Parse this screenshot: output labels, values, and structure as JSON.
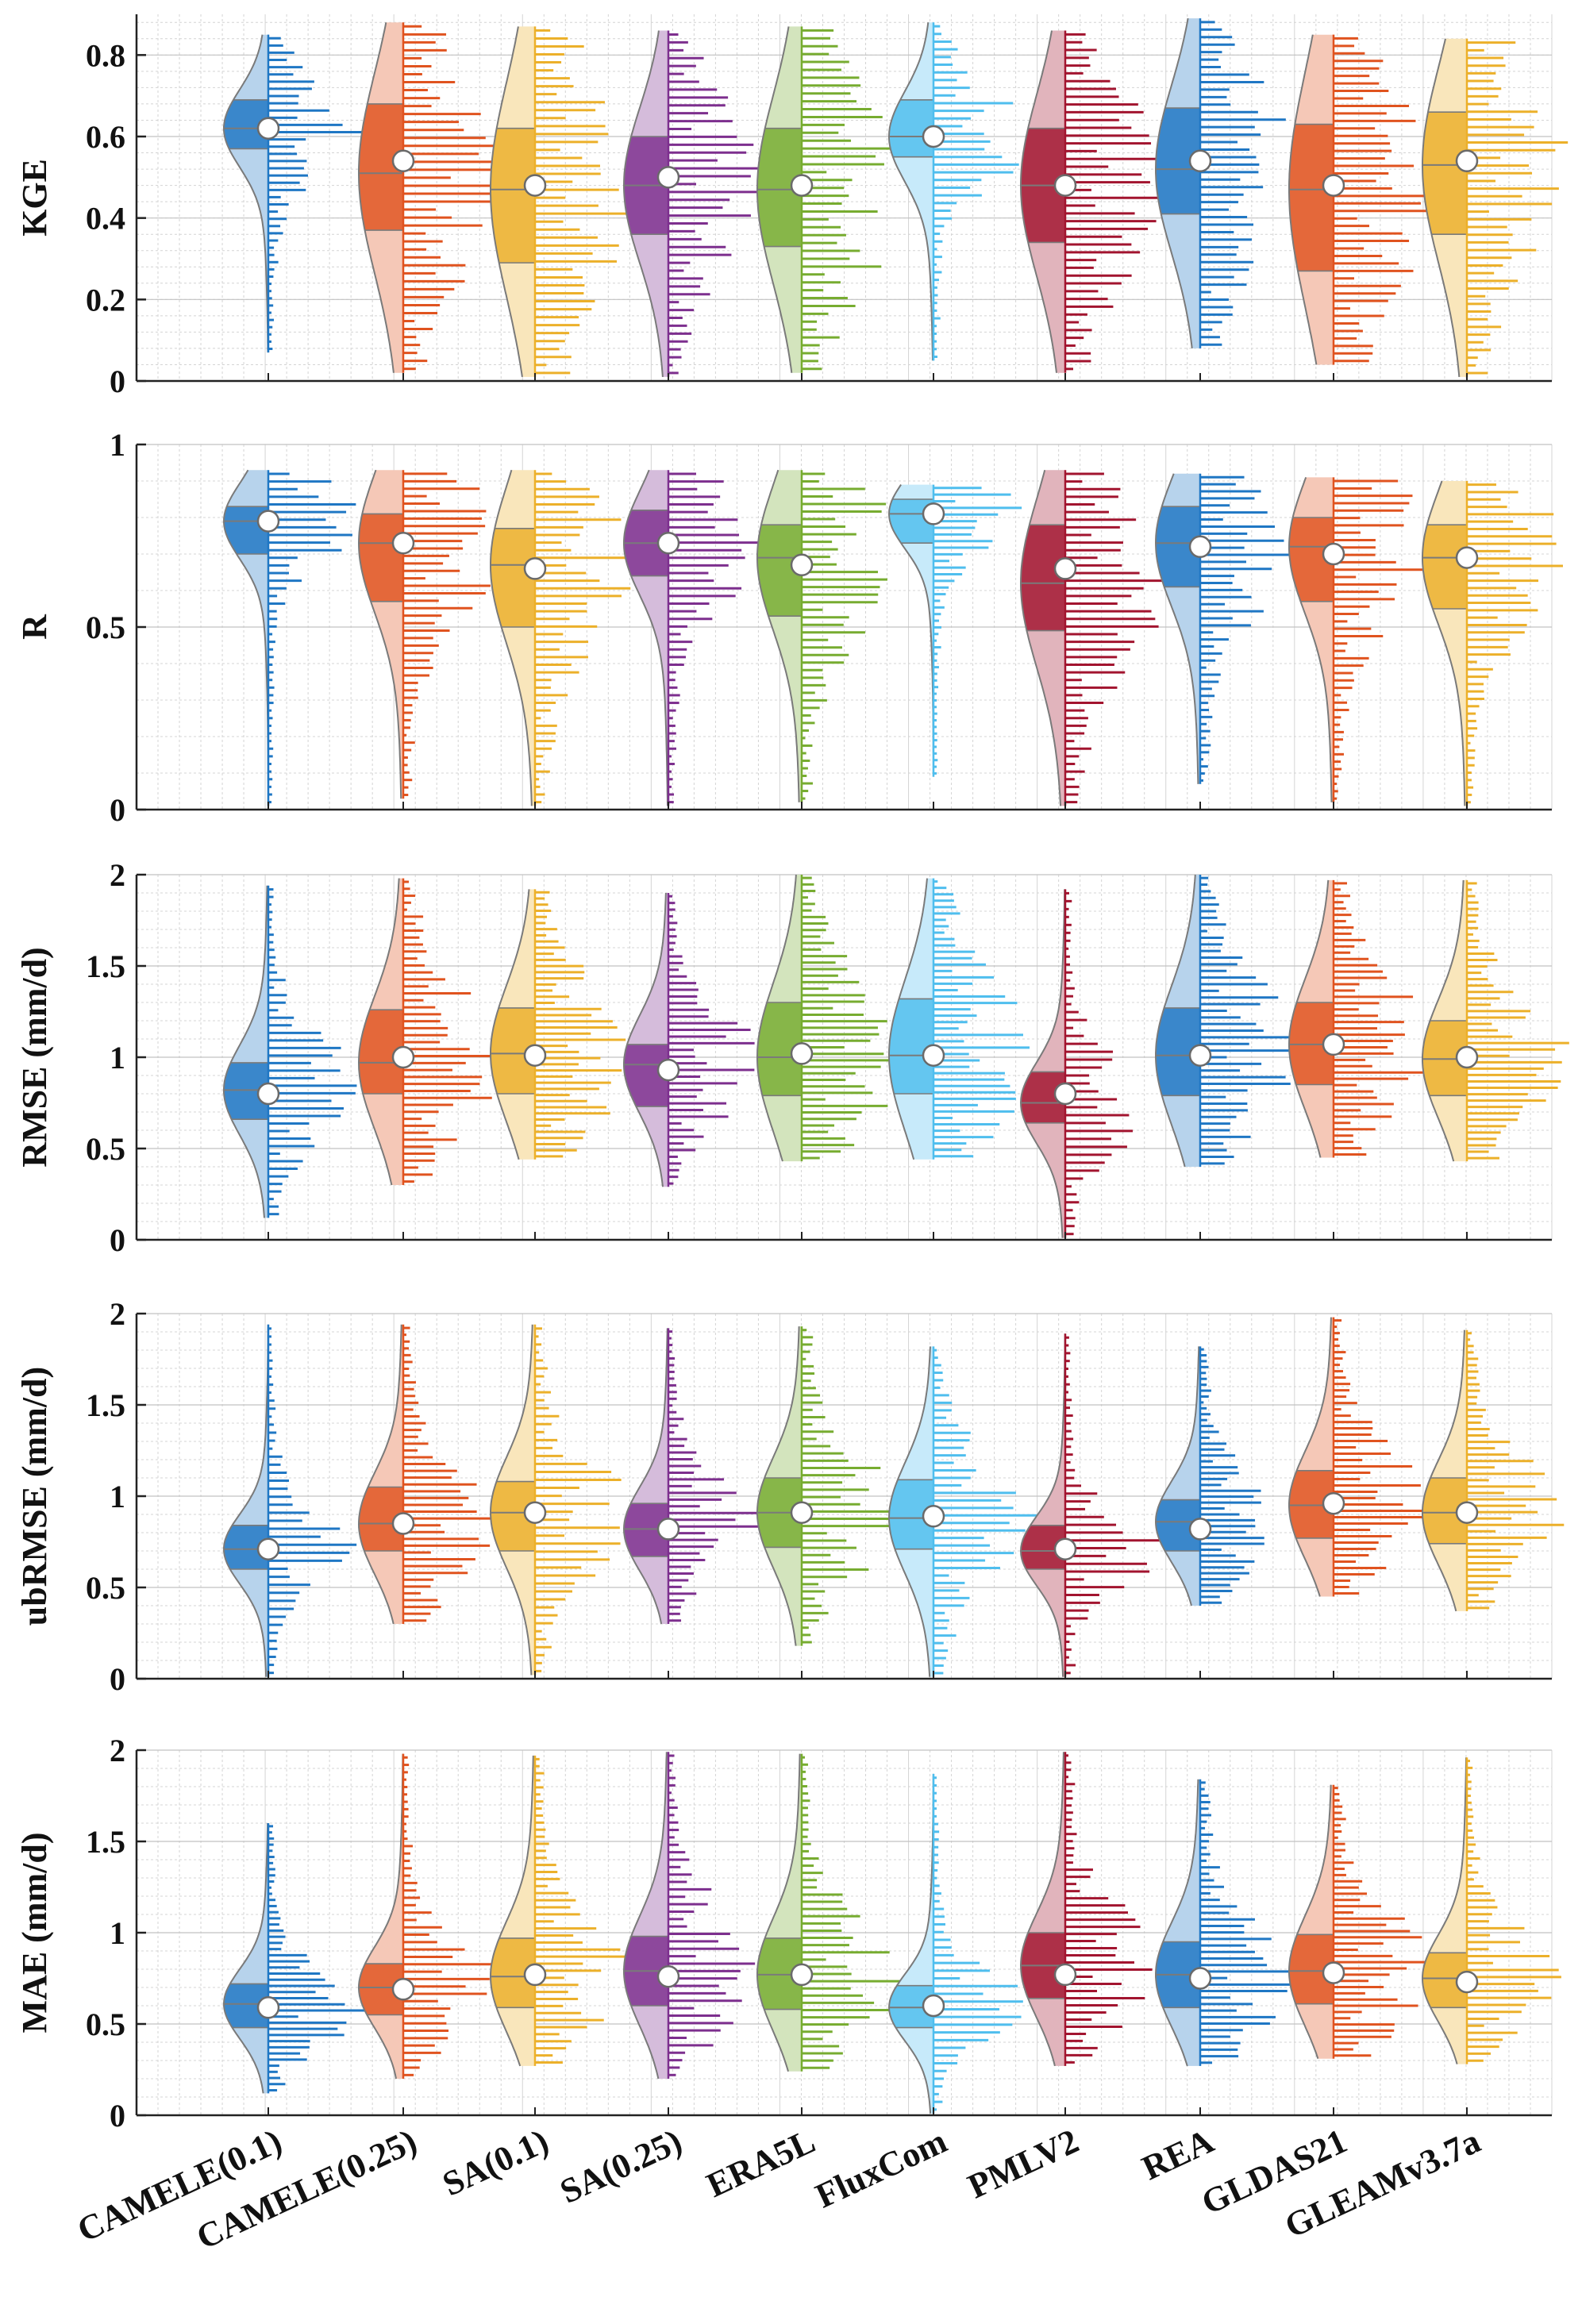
{
  "chart_data": {
    "type": "violin",
    "categories": [
      "CAMELE(0.1)",
      "CAMELE(0.25)",
      "SA(0.1)",
      "SA(0.25)",
      "ERA5L",
      "FluxCom",
      "PMLV2",
      "REA",
      "GLDAS21",
      "GLEAMv3.7a"
    ],
    "colors": [
      "#1f77c4",
      "#e0531f",
      "#ecb02a",
      "#7d2f8e",
      "#77ac30",
      "#4fbeee",
      "#a2142f",
      "#1f77c4",
      "#e0531f",
      "#ecb02a"
    ],
    "grid": true,
    "panels": [
      {
        "ylabel": "KGE",
        "ylim": [
          0,
          0.9
        ],
        "yticks": [
          0,
          0.2,
          0.4,
          0.6,
          0.8
        ],
        "ytick_labels": [
          "0",
          "0.2",
          "0.4",
          "0.6",
          "0.8"
        ],
        "stats": [
          {
            "min": 0.07,
            "q1": 0.57,
            "median": 0.62,
            "q3": 0.69,
            "max": 0.85,
            "mean": 0.62
          },
          {
            "min": 0.02,
            "q1": 0.37,
            "median": 0.51,
            "q3": 0.68,
            "max": 0.88,
            "mean": 0.54
          },
          {
            "min": 0.01,
            "q1": 0.29,
            "median": 0.47,
            "q3": 0.62,
            "max": 0.87,
            "mean": 0.48
          },
          {
            "min": 0.01,
            "q1": 0.36,
            "median": 0.48,
            "q3": 0.6,
            "max": 0.86,
            "mean": 0.5
          },
          {
            "min": 0.02,
            "q1": 0.33,
            "median": 0.47,
            "q3": 0.62,
            "max": 0.87,
            "mean": 0.48
          },
          {
            "min": 0.05,
            "q1": 0.55,
            "median": 0.6,
            "q3": 0.69,
            "max": 0.88,
            "mean": 0.6
          },
          {
            "min": 0.02,
            "q1": 0.34,
            "median": 0.48,
            "q3": 0.62,
            "max": 0.86,
            "mean": 0.48
          },
          {
            "min": 0.08,
            "q1": 0.41,
            "median": 0.52,
            "q3": 0.67,
            "max": 0.89,
            "mean": 0.54
          },
          {
            "min": 0.04,
            "q1": 0.27,
            "median": 0.47,
            "q3": 0.63,
            "max": 0.85,
            "mean": 0.48
          },
          {
            "min": 0.01,
            "q1": 0.36,
            "median": 0.53,
            "q3": 0.66,
            "max": 0.84,
            "mean": 0.54
          }
        ]
      },
      {
        "ylabel": "R",
        "ylim": [
          0,
          1
        ],
        "yticks": [
          0,
          0.5,
          1
        ],
        "ytick_labels": [
          "0",
          "0.5",
          "1"
        ],
        "stats": [
          {
            "min": 0.01,
            "q1": 0.7,
            "median": 0.79,
            "q3": 0.83,
            "max": 0.93,
            "mean": 0.79
          },
          {
            "min": 0.03,
            "q1": 0.57,
            "median": 0.73,
            "q3": 0.81,
            "max": 0.93,
            "mean": 0.73
          },
          {
            "min": 0.01,
            "q1": 0.5,
            "median": 0.67,
            "q3": 0.77,
            "max": 0.93,
            "mean": 0.66
          },
          {
            "min": 0.01,
            "q1": 0.64,
            "median": 0.73,
            "q3": 0.82,
            "max": 0.93,
            "mean": 0.73
          },
          {
            "min": 0.02,
            "q1": 0.53,
            "median": 0.69,
            "q3": 0.78,
            "max": 0.93,
            "mean": 0.67
          },
          {
            "min": 0.09,
            "q1": 0.73,
            "median": 0.81,
            "q3": 0.85,
            "max": 0.89,
            "mean": 0.81
          },
          {
            "min": 0.01,
            "q1": 0.49,
            "median": 0.62,
            "q3": 0.78,
            "max": 0.93,
            "mean": 0.66
          },
          {
            "min": 0.07,
            "q1": 0.61,
            "median": 0.73,
            "q3": 0.83,
            "max": 0.92,
            "mean": 0.72
          },
          {
            "min": 0.02,
            "q1": 0.57,
            "median": 0.72,
            "q3": 0.8,
            "max": 0.91,
            "mean": 0.7
          },
          {
            "min": 0.01,
            "q1": 0.55,
            "median": 0.69,
            "q3": 0.78,
            "max": 0.9,
            "mean": 0.69
          }
        ]
      },
      {
        "ylabel": "RMSE (mm/d)",
        "ylim": [
          0,
          2
        ],
        "yticks": [
          0,
          0.5,
          1,
          1.5,
          2
        ],
        "ytick_labels": [
          "0",
          "0.5",
          "1",
          "1.5",
          "2"
        ],
        "stats": [
          {
            "min": 0.12,
            "q1": 0.66,
            "median": 0.82,
            "q3": 0.97,
            "max": 1.94,
            "mean": 0.8
          },
          {
            "min": 0.3,
            "q1": 0.8,
            "median": 0.97,
            "q3": 1.26,
            "max": 1.98,
            "mean": 1.0
          },
          {
            "min": 0.44,
            "q1": 0.8,
            "median": 1.02,
            "q3": 1.27,
            "max": 1.92,
            "mean": 1.01
          },
          {
            "min": 0.29,
            "q1": 0.73,
            "median": 0.96,
            "q3": 1.07,
            "max": 1.9,
            "mean": 0.93
          },
          {
            "min": 0.43,
            "q1": 0.79,
            "median": 1.0,
            "q3": 1.3,
            "max": 2.0,
            "mean": 1.02
          },
          {
            "min": 0.44,
            "q1": 0.8,
            "median": 1.01,
            "q3": 1.32,
            "max": 1.98,
            "mean": 1.01
          },
          {
            "min": 0.01,
            "q1": 0.64,
            "median": 0.75,
            "q3": 0.92,
            "max": 1.92,
            "mean": 0.8
          },
          {
            "min": 0.4,
            "q1": 0.79,
            "median": 1.01,
            "q3": 1.27,
            "max": 2.0,
            "mean": 1.01
          },
          {
            "min": 0.45,
            "q1": 0.85,
            "median": 1.07,
            "q3": 1.3,
            "max": 1.97,
            "mean": 1.07
          },
          {
            "min": 0.43,
            "q1": 0.79,
            "median": 0.99,
            "q3": 1.2,
            "max": 1.97,
            "mean": 1.0
          }
        ]
      },
      {
        "ylabel": "ubRMSE (mm/d)",
        "ylim": [
          0,
          2
        ],
        "yticks": [
          0,
          0.5,
          1,
          1.5,
          2
        ],
        "ytick_labels": [
          "0",
          "0.5",
          "1",
          "1.5",
          "2"
        ],
        "stats": [
          {
            "min": 0.01,
            "q1": 0.6,
            "median": 0.71,
            "q3": 0.84,
            "max": 1.94,
            "mean": 0.71
          },
          {
            "min": 0.3,
            "q1": 0.7,
            "median": 0.85,
            "q3": 1.05,
            "max": 1.94,
            "mean": 0.85
          },
          {
            "min": 0.02,
            "q1": 0.7,
            "median": 0.91,
            "q3": 1.08,
            "max": 1.94,
            "mean": 0.91
          },
          {
            "min": 0.3,
            "q1": 0.67,
            "median": 0.82,
            "q3": 0.96,
            "max": 1.92,
            "mean": 0.82
          },
          {
            "min": 0.18,
            "q1": 0.72,
            "median": 0.91,
            "q3": 1.1,
            "max": 1.93,
            "mean": 0.91
          },
          {
            "min": 0.01,
            "q1": 0.71,
            "median": 0.88,
            "q3": 1.09,
            "max": 1.82,
            "mean": 0.89
          },
          {
            "min": 0.01,
            "q1": 0.6,
            "median": 0.7,
            "q3": 0.84,
            "max": 1.89,
            "mean": 0.71
          },
          {
            "min": 0.4,
            "q1": 0.7,
            "median": 0.86,
            "q3": 0.98,
            "max": 1.82,
            "mean": 0.82
          },
          {
            "min": 0.45,
            "q1": 0.77,
            "median": 0.95,
            "q3": 1.14,
            "max": 1.98,
            "mean": 0.96
          },
          {
            "min": 0.37,
            "q1": 0.74,
            "median": 0.91,
            "q3": 1.1,
            "max": 1.91,
            "mean": 0.91
          }
        ]
      },
      {
        "ylabel": "MAE (mm/d)",
        "ylim": [
          0,
          2
        ],
        "yticks": [
          0,
          0.5,
          1,
          1.5,
          2
        ],
        "ytick_labels": [
          "0",
          "0.5",
          "1",
          "1.5",
          "2"
        ],
        "stats": [
          {
            "min": 0.12,
            "q1": 0.48,
            "median": 0.61,
            "q3": 0.72,
            "max": 1.6,
            "mean": 0.59
          },
          {
            "min": 0.2,
            "q1": 0.55,
            "median": 0.7,
            "q3": 0.83,
            "max": 1.98,
            "mean": 0.69
          },
          {
            "min": 0.27,
            "q1": 0.59,
            "median": 0.76,
            "q3": 0.97,
            "max": 1.97,
            "mean": 0.77
          },
          {
            "min": 0.2,
            "q1": 0.6,
            "median": 0.79,
            "q3": 0.98,
            "max": 1.99,
            "mean": 0.76
          },
          {
            "min": 0.24,
            "q1": 0.58,
            "median": 0.77,
            "q3": 0.97,
            "max": 1.98,
            "mean": 0.77
          },
          {
            "min": 0.01,
            "q1": 0.48,
            "median": 0.59,
            "q3": 0.71,
            "max": 1.87,
            "mean": 0.6
          },
          {
            "min": 0.27,
            "q1": 0.64,
            "median": 0.82,
            "q3": 1.0,
            "max": 1.99,
            "mean": 0.77
          },
          {
            "min": 0.27,
            "q1": 0.59,
            "median": 0.77,
            "q3": 0.95,
            "max": 1.84,
            "mean": 0.75
          },
          {
            "min": 0.31,
            "q1": 0.61,
            "median": 0.79,
            "q3": 0.99,
            "max": 1.81,
            "mean": 0.78
          },
          {
            "min": 0.28,
            "q1": 0.59,
            "median": 0.75,
            "q3": 0.89,
            "max": 1.96,
            "mean": 0.73
          }
        ]
      }
    ]
  }
}
